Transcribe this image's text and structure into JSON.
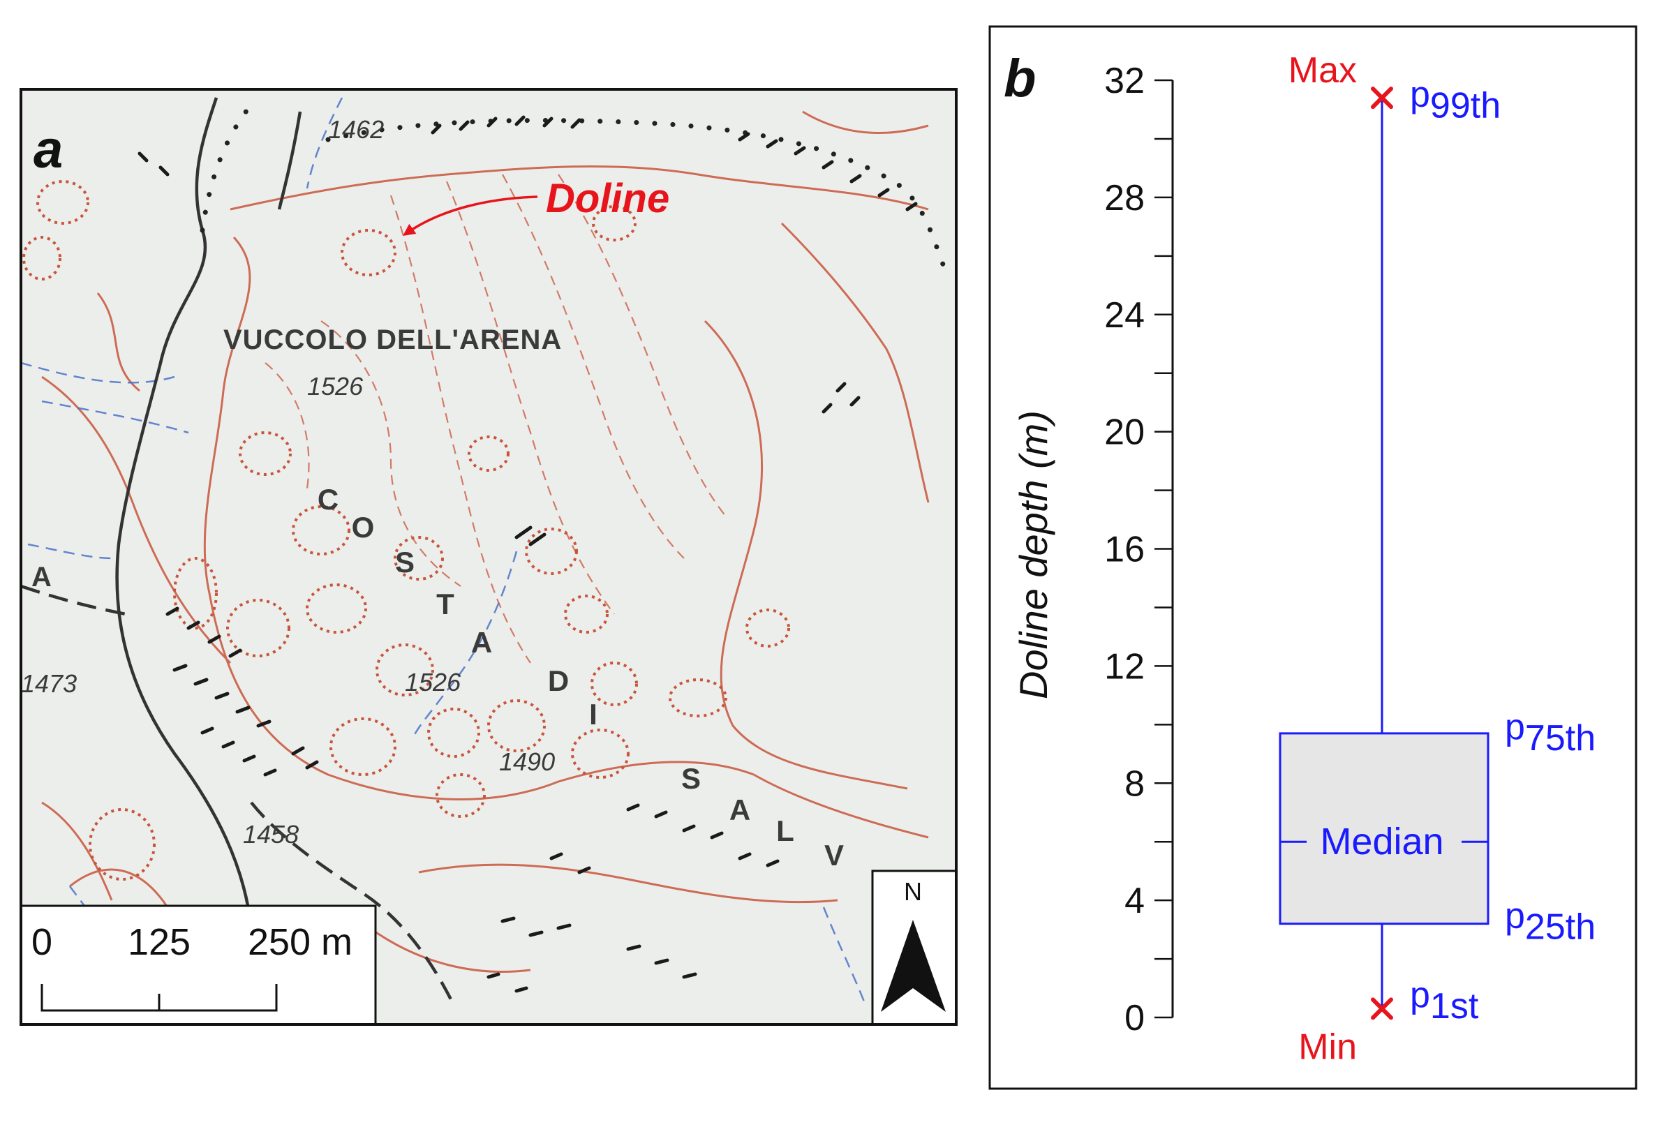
{
  "panel_a": {
    "label": "a",
    "doline_label": "Doline",
    "place_names": {
      "vuccolo": "VUCCOLO DELL'ARENA",
      "costa_letters": [
        "C",
        "O",
        "S",
        "T",
        "A"
      ],
      "di_letters": [
        "D",
        "I"
      ],
      "salv_letters": [
        "S",
        "A",
        "L",
        "V"
      ],
      "edge_letter": "A"
    },
    "elevations": [
      "1462",
      "1526",
      "1526",
      "1490",
      "1473",
      "1458"
    ],
    "scale_bar": {
      "labels": [
        "0",
        "125",
        "250 m"
      ]
    },
    "north_arrow_label": "N",
    "colors": {
      "contour": "#c8553a",
      "water": "#4a72c8",
      "road": "#333333",
      "map_bg": "#eceeec",
      "highlight": "#e8141c"
    }
  },
  "panel_b": {
    "label": "b",
    "annotations": {
      "max": "Max",
      "min": "Min",
      "median": "Median",
      "p_letter": "p",
      "p99": "99th",
      "p75": "75th",
      "p25": "25th",
      "p1": "1st"
    },
    "colors": {
      "box_fill": "#e6e6e6",
      "box_stroke": "#1a1aff",
      "extreme_marker": "#e8141c"
    }
  },
  "chart_data": {
    "type": "box",
    "ylabel": "Doline depth (m)",
    "ylim": [
      0,
      32
    ],
    "yticks": [
      0,
      4,
      8,
      12,
      16,
      20,
      24,
      28,
      32
    ],
    "minor_step": 2,
    "stats": {
      "min": 0.3,
      "p1": 0.4,
      "p25": 3.2,
      "median": 6.0,
      "p75": 9.7,
      "p99": 31.3,
      "max": 31.4
    }
  }
}
